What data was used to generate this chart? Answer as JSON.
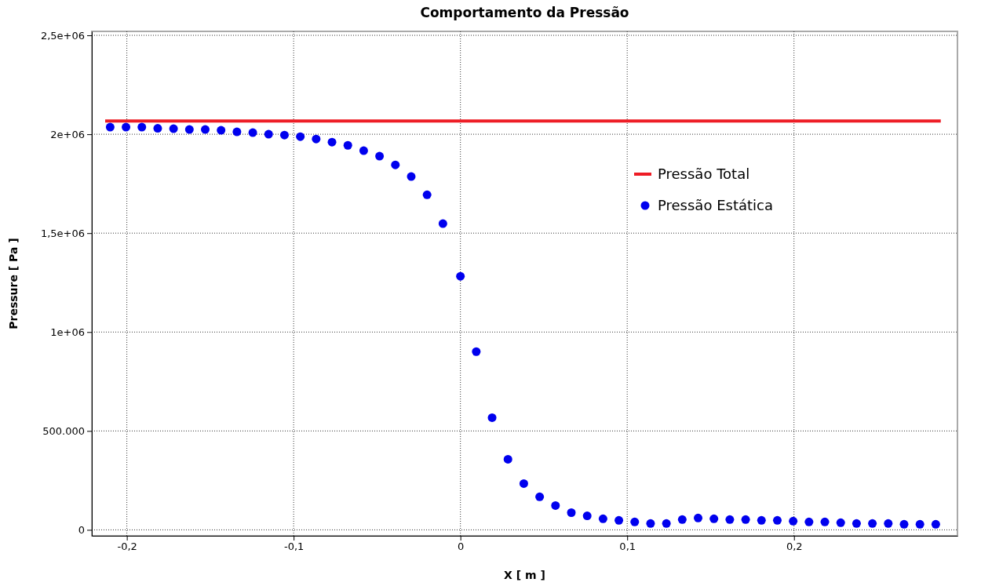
{
  "chart_data": {
    "type": "scatter",
    "title": "Comportamento da Pressão",
    "xlabel": "X [ m ]",
    "ylabel": "Pressure [ Pa ]",
    "xlim": [
      -0.221,
      0.298
    ],
    "ylim": [
      -30000,
      2520000
    ],
    "xticks": [
      {
        "value": -0.2,
        "label": "-0,2"
      },
      {
        "value": -0.1,
        "label": "-0,1"
      },
      {
        "value": 0,
        "label": "0"
      },
      {
        "value": 0.1,
        "label": "0,1"
      },
      {
        "value": 0.2,
        "label": "0,2"
      }
    ],
    "yticks": [
      {
        "value": 0,
        "label": "0"
      },
      {
        "value": 500000,
        "label": "500.000"
      },
      {
        "value": 1000000,
        "label": "1e+06"
      },
      {
        "value": 1500000,
        "label": "1,5e+06"
      },
      {
        "value": 2000000,
        "label": "2e+06"
      },
      {
        "value": 2500000,
        "label": "2,5e+06"
      }
    ],
    "grid": true,
    "legend": "top right",
    "series": [
      {
        "name": "Pressão Total",
        "type": "line",
        "color": "#ee1c25",
        "marker": "none",
        "line_style": "solid",
        "x": [
          -0.213,
          0.288
        ],
        "values": [
          2067000,
          2067000
        ]
      },
      {
        "name": "Pressão Estática",
        "color": "#0000ee",
        "marker": "circle",
        "x": [
          -0.21,
          -0.2005,
          -0.191,
          -0.1815,
          -0.172,
          -0.1625,
          -0.153,
          -0.1435,
          -0.134,
          -0.1245,
          -0.115,
          -0.1055,
          -0.096,
          -0.0865,
          -0.077,
          -0.0675,
          -0.058,
          -0.0485,
          -0.039,
          -0.0295,
          -0.02,
          -0.0105,
          0,
          0.0095,
          0.019,
          0.0285,
          0.038,
          0.0475,
          0.057,
          0.0665,
          0.076,
          0.0855,
          0.095,
          0.1045,
          0.114,
          0.1235,
          0.133,
          0.1425,
          0.152,
          0.1615,
          0.171,
          0.1805,
          0.19,
          0.1995,
          0.209,
          0.2185,
          0.228,
          0.2375,
          0.247,
          0.2565,
          0.266,
          0.2755,
          0.285
        ],
        "values": [
          2036000,
          2036000,
          2036000,
          2030000,
          2028000,
          2024000,
          2024000,
          2020000,
          2012000,
          2008000,
          2000000,
          1996000,
          1988000,
          1976000,
          1960000,
          1944000,
          1917000,
          1889000,
          1845000,
          1786000,
          1694000,
          1548000,
          1282000,
          901000,
          567000,
          357000,
          234000,
          167000,
          123000,
          87000,
          71000,
          56000,
          48000,
          40000,
          32000,
          32000,
          52000,
          60000,
          56000,
          52000,
          52000,
          48000,
          48000,
          44000,
          40000,
          40000,
          36000,
          32000,
          32000,
          32000,
          28000,
          28000,
          28000
        ]
      }
    ]
  }
}
